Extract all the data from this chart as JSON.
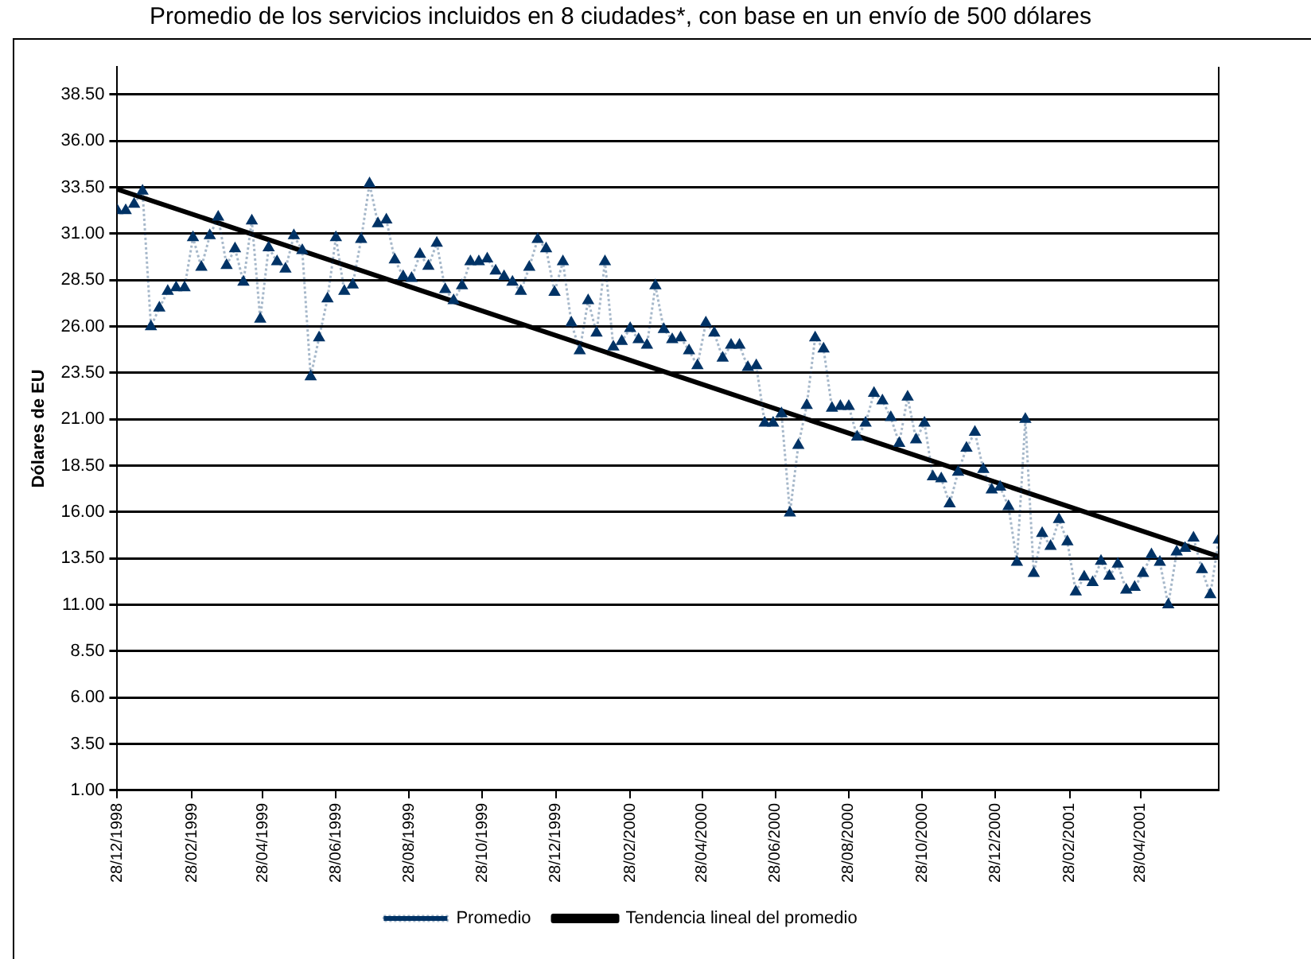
{
  "chart_data": {
    "type": "line",
    "title": "Promedio de los servicios incluidos en 8 ciudades*, con base en un envío de 500 dólares",
    "ylabel": "Dólares de EU",
    "ylim": [
      1,
      40
    ],
    "yticks": [
      {
        "value": 1,
        "label": "1.00"
      },
      {
        "value": 3.5,
        "label": "3.50"
      },
      {
        "value": 6,
        "label": "6.00"
      },
      {
        "value": 8.5,
        "label": "8.50"
      },
      {
        "value": 11,
        "label": "11.00"
      },
      {
        "value": 13.5,
        "label": "13.50"
      },
      {
        "value": 16,
        "label": "16.00"
      },
      {
        "value": 18.5,
        "label": "18.50"
      },
      {
        "value": 21,
        "label": "21.00"
      },
      {
        "value": 23.5,
        "label": "23.50"
      },
      {
        "value": 26,
        "label": "26.00"
      },
      {
        "value": 28.5,
        "label": "28.50"
      },
      {
        "value": 31,
        "label": "31.00"
      },
      {
        "value": 33.5,
        "label": "33.50"
      },
      {
        "value": 36,
        "label": "36.00"
      },
      {
        "value": 38.5,
        "label": "38.50"
      }
    ],
    "xlim": [
      "1998-12-28",
      "2001-07-02"
    ],
    "xticks": [
      {
        "value": "1998-12-28",
        "label": "28/12/1998"
      },
      {
        "value": "1999-02-28",
        "label": "28/02/1999"
      },
      {
        "value": "1999-04-28",
        "label": "28/04/1999"
      },
      {
        "value": "1999-06-28",
        "label": "28/06/1999"
      },
      {
        "value": "1999-08-28",
        "label": "28/08/1999"
      },
      {
        "value": "1999-10-28",
        "label": "28/10/1999"
      },
      {
        "value": "1999-12-28",
        "label": "28/12/1999"
      },
      {
        "value": "2000-02-28",
        "label": "28/02/2000"
      },
      {
        "value": "2000-04-28",
        "label": "28/04/2000"
      },
      {
        "value": "2000-06-28",
        "label": "28/06/2000"
      },
      {
        "value": "2000-08-28",
        "label": "28/08/2000"
      },
      {
        "value": "2000-10-28",
        "label": "28/10/2000"
      },
      {
        "value": "2000-12-28",
        "label": "28/12/2000"
      },
      {
        "value": "2001-02-28",
        "label": "28/02/2001"
      },
      {
        "value": "2001-04-28",
        "label": "28/04/2001"
      }
    ],
    "x": [
      "1998-12-28",
      "1999-01-04",
      "1999-01-11",
      "1999-01-18",
      "1999-01-25",
      "1999-02-01",
      "1999-02-08",
      "1999-02-15",
      "1999-02-22",
      "1999-03-01",
      "1999-03-08",
      "1999-03-15",
      "1999-03-22",
      "1999-03-29",
      "1999-04-05",
      "1999-04-12",
      "1999-04-19",
      "1999-04-26",
      "1999-05-03",
      "1999-05-10",
      "1999-05-17",
      "1999-05-24",
      "1999-05-31",
      "1999-06-07",
      "1999-06-14",
      "1999-06-21",
      "1999-06-28",
      "1999-07-05",
      "1999-07-12",
      "1999-07-19",
      "1999-07-26",
      "1999-08-02",
      "1999-08-09",
      "1999-08-16",
      "1999-08-23",
      "1999-08-30",
      "1999-09-06",
      "1999-09-13",
      "1999-09-20",
      "1999-09-27",
      "1999-10-04",
      "1999-10-11",
      "1999-10-18",
      "1999-10-25",
      "1999-11-01",
      "1999-11-08",
      "1999-11-15",
      "1999-11-22",
      "1999-11-29",
      "1999-12-06",
      "1999-12-13",
      "1999-12-20",
      "1999-12-27",
      "2000-01-03",
      "2000-01-10",
      "2000-01-17",
      "2000-01-24",
      "2000-01-31",
      "2000-02-07",
      "2000-02-14",
      "2000-02-21",
      "2000-02-28",
      "2000-03-06",
      "2000-03-13",
      "2000-03-20",
      "2000-03-27",
      "2000-04-03",
      "2000-04-10",
      "2000-04-17",
      "2000-04-24",
      "2000-05-01",
      "2000-05-08",
      "2000-05-15",
      "2000-05-22",
      "2000-05-29",
      "2000-06-05",
      "2000-06-12",
      "2000-06-19",
      "2000-06-26",
      "2000-07-03",
      "2000-07-10",
      "2000-07-17",
      "2000-07-24",
      "2000-07-31",
      "2000-08-07",
      "2000-08-14",
      "2000-08-21",
      "2000-08-28",
      "2000-09-04",
      "2000-09-11",
      "2000-09-18",
      "2000-09-25",
      "2000-10-02",
      "2000-10-09",
      "2000-10-16",
      "2000-10-23",
      "2000-10-30",
      "2000-11-06",
      "2000-11-13",
      "2000-11-20",
      "2000-11-27",
      "2000-12-04",
      "2000-12-11",
      "2000-12-18",
      "2000-12-25",
      "2001-01-01",
      "2001-01-08",
      "2001-01-15",
      "2001-01-22",
      "2001-01-29",
      "2001-02-05",
      "2001-02-12",
      "2001-02-19",
      "2001-02-26",
      "2001-03-05",
      "2001-03-12",
      "2001-03-19",
      "2001-03-26",
      "2001-04-02",
      "2001-04-09",
      "2001-04-16",
      "2001-04-23",
      "2001-04-30",
      "2001-05-07",
      "2001-05-14",
      "2001-05-21",
      "2001-05-28",
      "2001-06-04",
      "2001-06-11",
      "2001-06-18",
      "2001-06-25",
      "2001-07-02"
    ],
    "series": [
      {
        "name": "Promedio",
        "color": "#003366",
        "marker": "triangle",
        "line_style": "dotted",
        "values": [
          32.25,
          32.25,
          32.6,
          33.3,
          26.0,
          27.0,
          27.9,
          28.1,
          28.1,
          30.8,
          29.2,
          30.9,
          31.9,
          29.3,
          30.2,
          28.4,
          31.7,
          26.4,
          30.25,
          29.5,
          29.1,
          30.9,
          30.1,
          23.3,
          25.4,
          27.5,
          30.8,
          27.9,
          28.25,
          30.7,
          33.7,
          31.55,
          31.75,
          29.6,
          28.7,
          28.6,
          29.9,
          29.25,
          30.5,
          28.0,
          27.4,
          28.2,
          29.5,
          29.5,
          29.65,
          29.0,
          28.7,
          28.4,
          27.9,
          29.2,
          30.7,
          30.2,
          27.85,
          29.5,
          26.2,
          24.7,
          27.4,
          25.65,
          29.5,
          24.9,
          25.2,
          25.9,
          25.3,
          25.0,
          28.2,
          25.85,
          25.3,
          25.4,
          24.7,
          23.9,
          26.2,
          25.65,
          24.3,
          25.0,
          25.0,
          23.8,
          23.9,
          20.8,
          20.8,
          21.3,
          15.95,
          19.6,
          21.75,
          25.4,
          24.8,
          21.6,
          21.7,
          21.7,
          20.05,
          20.8,
          22.4,
          22.0,
          21.1,
          19.7,
          22.2,
          19.9,
          20.8,
          17.9,
          17.8,
          16.45,
          18.15,
          19.45,
          20.3,
          18.3,
          17.2,
          17.35,
          16.3,
          13.3,
          21.0,
          12.7,
          14.85,
          14.15,
          15.6,
          14.4,
          11.7,
          12.5,
          12.2,
          13.35,
          12.55,
          13.2,
          11.8,
          11.95,
          12.7,
          13.7,
          13.3,
          11.0,
          13.85,
          14.05,
          14.6,
          12.9,
          11.55,
          14.5
        ]
      },
      {
        "name": "Tendencia lineal del promedio",
        "type": "line",
        "color": "#000000",
        "marker": "none",
        "line_style": "solid",
        "x": [
          "1998-12-28",
          "2001-07-02"
        ],
        "values": [
          33.4,
          13.6
        ]
      }
    ],
    "grid": "y",
    "legend": "bottom"
  }
}
